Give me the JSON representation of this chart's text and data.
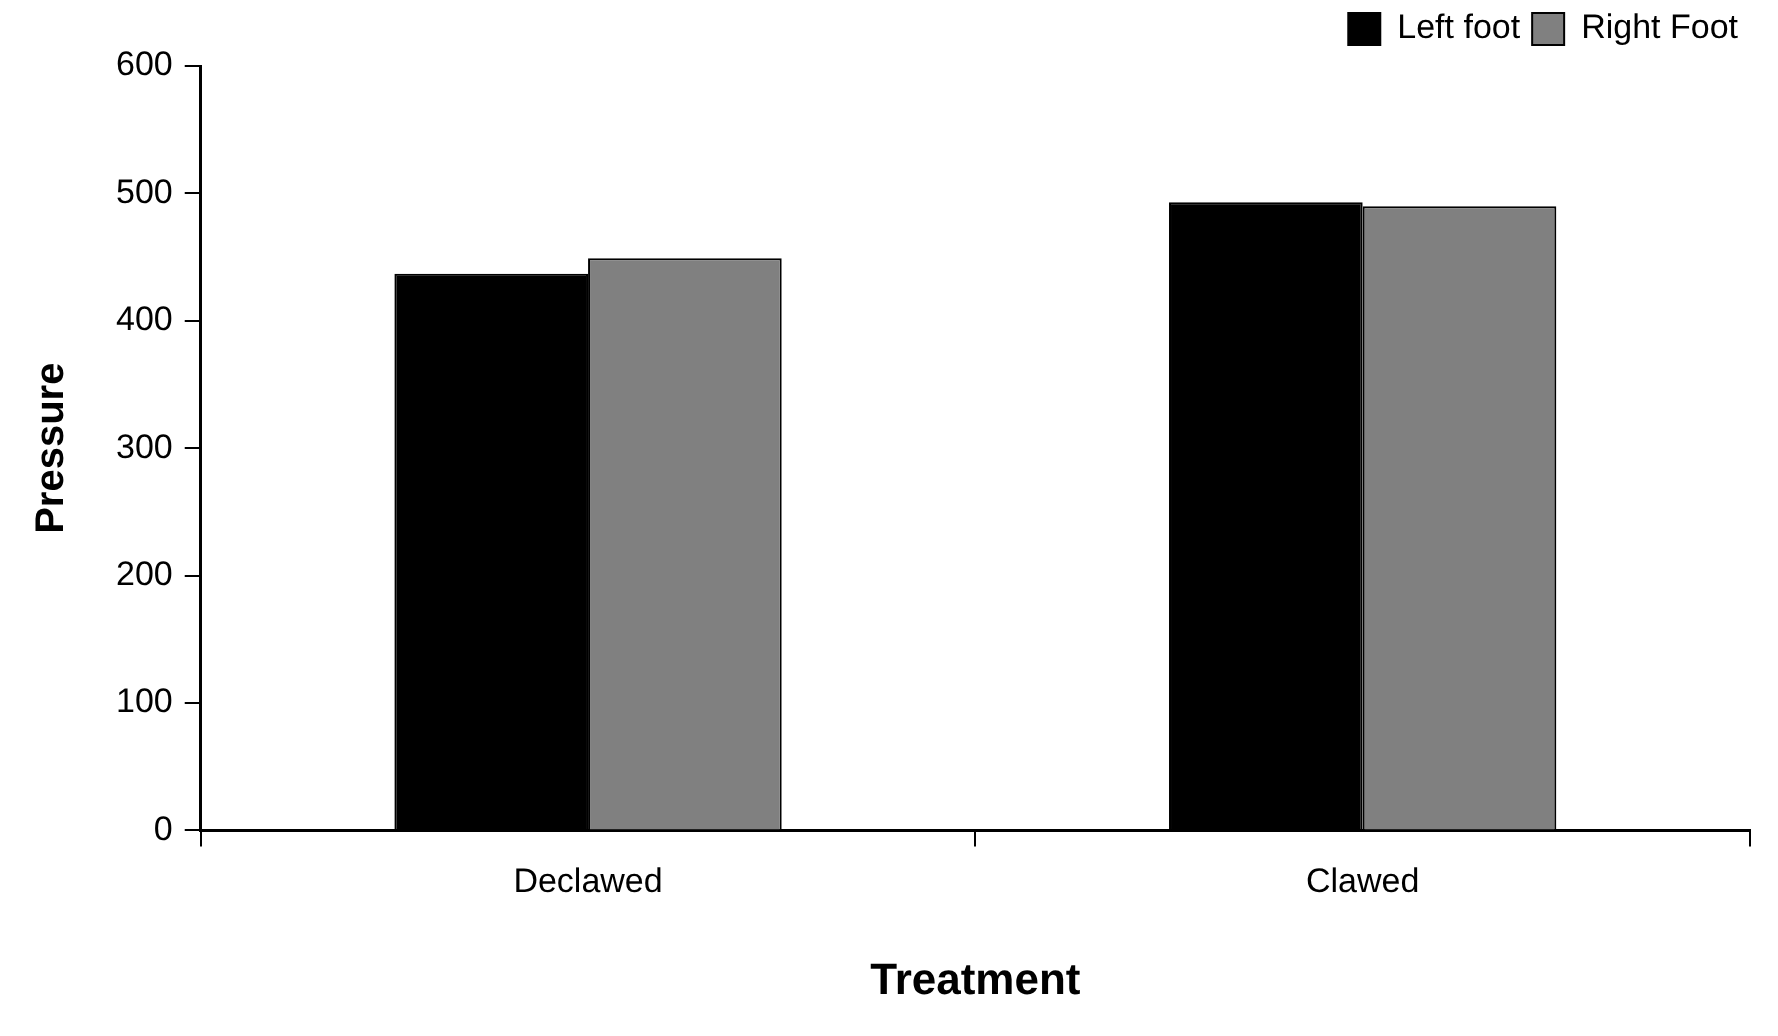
{
  "chart_data": {
    "type": "bar",
    "xlabel": "Treatment",
    "ylabel": "Pressure",
    "categories": [
      "Declawed",
      "Clawed"
    ],
    "series": [
      {
        "name": "Left foot",
        "color": "#000000",
        "values": [
          437,
          493
        ]
      },
      {
        "name": "Right Foot",
        "color": "#808080",
        "values": [
          449,
          490
        ]
      }
    ],
    "ylim": [
      0,
      600
    ],
    "yticks": [
      0,
      100,
      200,
      300,
      400,
      500,
      600
    ],
    "grid": false,
    "legend": "top right"
  }
}
